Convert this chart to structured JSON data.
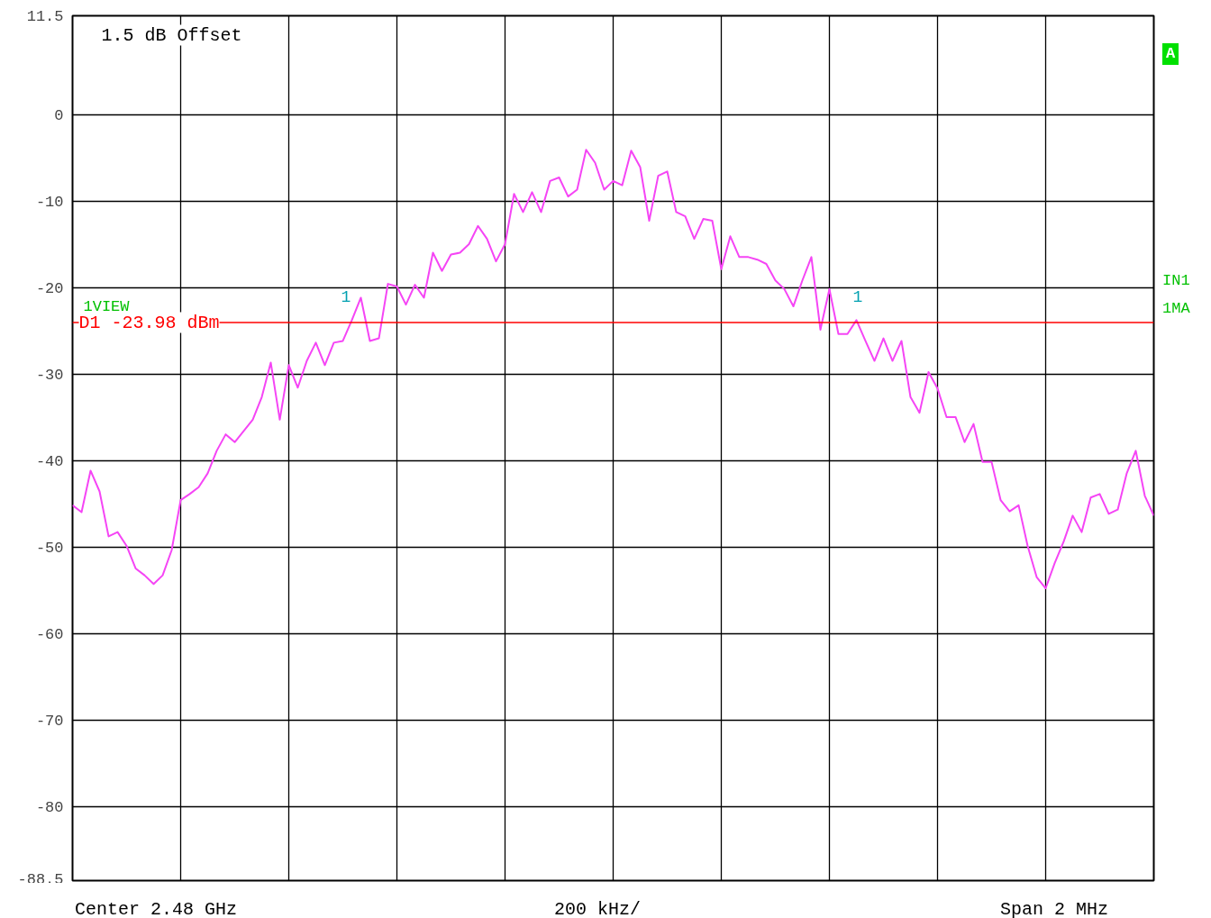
{
  "chart_data": {
    "type": "line",
    "categories": [
      null,
      null,
      null,
      null,
      null,
      null,
      null,
      null,
      null,
      null,
      null,
      null,
      null,
      null,
      null,
      null,
      null,
      null,
      null,
      null,
      null,
      null,
      null,
      null,
      null,
      null,
      null,
      null,
      null,
      null,
      null,
      null,
      null,
      null,
      null,
      null,
      null,
      null,
      null,
      null,
      null,
      null,
      null,
      null,
      null,
      null,
      null,
      null,
      null,
      null,
      null,
      null,
      null,
      null,
      null,
      null,
      null,
      null,
      null,
      null,
      null,
      null,
      null,
      null,
      null,
      null,
      null,
      null,
      null,
      null,
      null,
      null,
      null,
      null,
      null,
      null,
      null,
      null,
      null,
      null,
      null,
      null,
      null,
      null,
      null,
      null,
      null,
      null,
      null,
      null,
      null,
      null,
      null,
      null,
      null,
      null,
      null,
      null,
      null,
      null,
      null,
      null,
      null,
      null,
      null,
      null,
      null,
      null,
      null,
      null,
      null,
      null,
      null,
      null,
      null,
      null,
      null,
      null,
      null,
      null,
      null
    ],
    "series": [
      {
        "color": "#f545f5",
        "values": [
          -45.1,
          -45.9,
          -41.1,
          -43.5,
          -48.7,
          -48.2,
          -49.8,
          -52.4,
          -53.2,
          -54.2,
          -53.2,
          -50.3,
          -44.5,
          -43.8,
          -43.0,
          -41.4,
          -38.8,
          -36.9,
          -37.8,
          -36.5,
          -35.2,
          -32.6,
          -28.6,
          -35.2,
          -28.9,
          -31.5,
          -28.4,
          -26.3,
          -28.9,
          -26.3,
          -26.1,
          -23.7,
          -21.1,
          -26.1,
          -25.8,
          -19.5,
          -19.8,
          -21.9,
          -19.6,
          -21.1,
          -15.9,
          -18.0,
          -16.1,
          -15.9,
          -14.9,
          -12.8,
          -14.3,
          -16.9,
          -14.9,
          -9.1,
          -11.2,
          -8.9,
          -11.2,
          -7.6,
          -7.2,
          -9.4,
          -8.6,
          -4.0,
          -5.5,
          -8.6,
          -7.6,
          -8.1,
          -4.1,
          -6.0,
          -12.2,
          -7.0,
          -6.5,
          -11.2,
          -11.7,
          -14.3,
          -12.0,
          -12.2,
          -17.8,
          -14.0,
          -16.4,
          -16.4,
          -16.7,
          -17.2,
          -19.1,
          -20.1,
          -22.1,
          -19.1,
          -16.4,
          -24.8,
          -20.1,
          -25.3,
          -25.3,
          -23.7,
          -26.1,
          -28.4,
          -25.8,
          -28.4,
          -26.1,
          -32.6,
          -34.4,
          -29.7,
          -31.6,
          -34.9,
          -34.9,
          -37.8,
          -35.7,
          -40.1,
          -40.1,
          -44.5,
          -45.8,
          -45.1,
          -49.8,
          -53.4,
          -54.7,
          -51.8,
          -49.3,
          -46.3,
          -48.2,
          -44.2,
          -43.8,
          -46.1,
          -45.6,
          -41.4,
          -38.8,
          -44.0,
          -46.3
        ]
      }
    ],
    "ylim": [
      -88.5,
      11.5
    ],
    "yticks": [
      11.5,
      0,
      -10,
      -20,
      -30,
      -40,
      -50,
      -60,
      -70,
      -80,
      -88.5
    ],
    "grid": true,
    "tick_labels": "y",
    "ref_lines": [
      {
        "axis": "y",
        "value": -23.98,
        "label": "D1 -23.98 dBm",
        "color": "#ff0000"
      }
    ],
    "annotations": [
      "1.5 dB Offset",
      "1VIEW",
      "1",
      "1",
      "A",
      "IN1",
      "1MA",
      "Center 2.48 GHz",
      "200 kHz/",
      "Span 2 MHz"
    ]
  }
}
